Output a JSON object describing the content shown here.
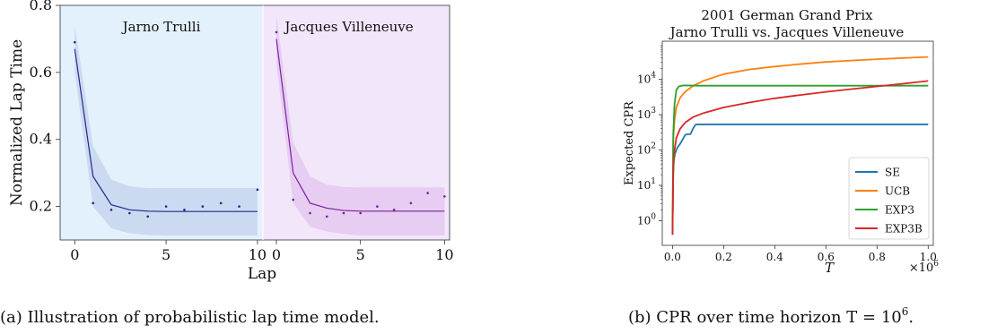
{
  "chart_data": [
    {
      "type": "line",
      "ylabel": "Normalized Lap Time",
      "xlabel": "Lap",
      "ylim": [
        0.1,
        0.8
      ],
      "yticks": [
        "0.2",
        "0.4",
        "0.6",
        "0.8"
      ],
      "xticks": [
        "0",
        "5",
        "10"
      ],
      "xlim": [
        -0.8,
        10.3
      ],
      "caption": "(a) Illustration of probabilistic lap time model.",
      "panels": [
        {
          "name": "Jarno Trulli",
          "background": "#e3f1fc",
          "line_color": "#1f2a8a",
          "band_color": "#c7d6ef",
          "x": [
            0,
            1,
            2,
            3,
            4,
            5,
            6,
            7,
            8,
            9,
            10
          ],
          "mean": [
            0.67,
            0.29,
            0.205,
            0.19,
            0.186,
            0.185,
            0.185,
            0.185,
            0.185,
            0.185,
            0.185
          ],
          "lower": [
            0.6,
            0.2,
            0.135,
            0.12,
            0.115,
            0.113,
            0.113,
            0.113,
            0.113,
            0.113,
            0.113
          ],
          "upper": [
            0.74,
            0.38,
            0.28,
            0.26,
            0.255,
            0.255,
            0.255,
            0.255,
            0.255,
            0.255,
            0.255
          ],
          "observed_x": [
            0,
            1,
            2,
            3,
            4,
            5,
            6,
            7,
            8,
            9,
            10
          ],
          "observed_y": [
            0.69,
            0.21,
            0.19,
            0.18,
            0.17,
            0.2,
            0.19,
            0.2,
            0.21,
            0.2,
            0.25
          ]
        },
        {
          "name": "Jacques Villeneuve",
          "background": "#f2e6fb",
          "line_color": "#7b1fa2",
          "band_color": "#e4c8ee",
          "x": [
            0,
            1,
            2,
            3,
            4,
            5,
            6,
            7,
            8,
            9,
            10
          ],
          "mean": [
            0.7,
            0.3,
            0.21,
            0.195,
            0.188,
            0.186,
            0.186,
            0.186,
            0.186,
            0.186,
            0.186
          ],
          "lower": [
            0.63,
            0.21,
            0.14,
            0.125,
            0.118,
            0.114,
            0.114,
            0.114,
            0.114,
            0.114,
            0.114
          ],
          "upper": [
            0.77,
            0.39,
            0.29,
            0.265,
            0.258,
            0.257,
            0.257,
            0.257,
            0.257,
            0.257,
            0.257
          ],
          "observed_x": [
            0,
            1,
            2,
            3,
            4,
            5,
            6,
            7,
            8,
            9,
            10
          ],
          "observed_y": [
            0.72,
            0.22,
            0.18,
            0.17,
            0.18,
            0.18,
            0.2,
            0.19,
            0.21,
            0.24,
            0.23
          ]
        }
      ]
    },
    {
      "type": "line",
      "title": "2001 German Grand Prix",
      "subtitle": "Jarno Trulli vs. Jacques Villeneuve",
      "xlabel": "T",
      "ylabel": "Expected CPR",
      "yscale": "log",
      "xlim": [
        -0.04,
        1.02
      ],
      "ylim": [
        0.2,
        120000
      ],
      "xticks": [
        "0.0",
        "0.2",
        "0.4",
        "0.6",
        "0.8",
        "1.0"
      ],
      "x_multiplier": "×10",
      "x_multiplier_exp": "6",
      "yticks": [
        {
          "base": "10",
          "exp": "0",
          "value": 1
        },
        {
          "base": "10",
          "exp": "1",
          "value": 10
        },
        {
          "base": "10",
          "exp": "2",
          "value": 100
        },
        {
          "base": "10",
          "exp": "3",
          "value": 1000
        },
        {
          "base": "10",
          "exp": "4",
          "value": 10000
        }
      ],
      "legend_position": "bottom-right",
      "caption": "(b) CPR over time horizon T = 10",
      "caption_exp": "6",
      "caption_end": ".",
      "series": [
        {
          "name": "SE",
          "color": "#1f77b4",
          "x": [
            0,
            0.003,
            0.005,
            0.01,
            0.02,
            0.03,
            0.04,
            0.05,
            0.06,
            0.07,
            0.08,
            0.09,
            0.1,
            0.2,
            0.4,
            0.6,
            0.8,
            1.0
          ],
          "y": [
            0.4,
            20,
            50,
            80,
            120,
            150,
            200,
            270,
            280,
            280,
            400,
            520,
            530,
            530,
            530,
            530,
            530,
            530
          ]
        },
        {
          "name": "UCB",
          "color": "#ff7f0e",
          "x": [
            0,
            0.003,
            0.008,
            0.015,
            0.03,
            0.05,
            0.08,
            0.12,
            0.2,
            0.3,
            0.4,
            0.5,
            0.6,
            0.7,
            0.8,
            0.9,
            1.0
          ],
          "y": [
            0.4,
            200,
            700,
            1600,
            3000,
            4500,
            6500,
            9000,
            14000,
            19000,
            23000,
            27000,
            31000,
            34000,
            37000,
            40000,
            43000
          ]
        },
        {
          "name": "EXP3",
          "color": "#2ca02c",
          "x": [
            0,
            0.003,
            0.008,
            0.015,
            0.025,
            0.04,
            0.06,
            0.1,
            0.3,
            0.6,
            1.0
          ],
          "y": [
            0.4,
            300,
            2000,
            5000,
            6300,
            6700,
            6700,
            6600,
            6600,
            6600,
            6600
          ]
        },
        {
          "name": "EXP3B",
          "color": "#d62728",
          "x": [
            0,
            0.003,
            0.008,
            0.015,
            0.03,
            0.05,
            0.08,
            0.12,
            0.2,
            0.3,
            0.4,
            0.5,
            0.6,
            0.7,
            0.8,
            0.9,
            1.0
          ],
          "y": [
            0.4,
            30,
            100,
            220,
            400,
            600,
            850,
            1100,
            1600,
            2200,
            2900,
            3600,
            4400,
            5300,
            6300,
            7500,
            9000
          ]
        }
      ]
    }
  ]
}
